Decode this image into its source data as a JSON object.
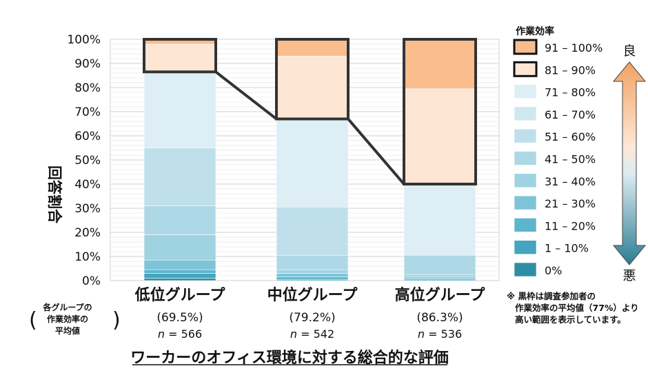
{
  "chart_data": {
    "type": "bar",
    "stacked": true,
    "ylabel": "回答割合",
    "xlabel": "ワーカーのオフィス環境に対する総合的な評価",
    "ylim": [
      0,
      100
    ],
    "yticks": [
      "0%",
      "10%",
      "20%",
      "30%",
      "40%",
      "50%",
      "60%",
      "70%",
      "80%",
      "90%",
      "100%"
    ],
    "group_avg_label": [
      "各グループの",
      "作業効率の",
      "平均値"
    ],
    "legend_title": "作業効率",
    "legend_good": "良",
    "legend_bad": "悪",
    "note": [
      "※ 黒枠は調査参加者の",
      "作業効率の平均値（77%）より",
      "高い範囲を表示しています。"
    ],
    "segment_labels": [
      "0%",
      "1 – 10%",
      "11 – 20%",
      "21 – 30%",
      "31 – 40%",
      "41 – 50%",
      "51 – 60%",
      "61 – 70%",
      "71 – 80%",
      "81 – 90%",
      "91 – 100%"
    ],
    "segment_colors": [
      "#2f8da6",
      "#45a4be",
      "#5db5cc",
      "#7ec4d8",
      "#9fd3e2",
      "#aed8e5",
      "#bfe0eb",
      "#cfe8f0",
      "#ddeef4",
      "#fde6d3",
      "#f9bd8e"
    ],
    "highlight_from_segment": 9,
    "categories": [
      {
        "name": "低位グループ",
        "avg": "(69.5%)",
        "n_label": "n",
        "n_value": " = 566",
        "segments": [
          1.0,
          2.0,
          1.5,
          4.0,
          10.5,
          12.0,
          24.0,
          0.0,
          31.5,
          11.5,
          2.0
        ]
      },
      {
        "name": "中位グループ",
        "avg": "(79.2%)",
        "n_label": "n",
        "n_value": " = 542",
        "segments": [
          0.0,
          0.5,
          1.0,
          1.5,
          1.5,
          6.0,
          20.0,
          0.0,
          36.5,
          26.0,
          7.0
        ]
      },
      {
        "name": "高位グループ",
        "avg": "(86.3%)",
        "n_label": "n",
        "n_value": " = 536",
        "segments": [
          0.0,
          0.5,
          0.5,
          0.5,
          1.0,
          8.0,
          0.0,
          0.0,
          29.5,
          39.5,
          20.5
        ]
      }
    ]
  }
}
